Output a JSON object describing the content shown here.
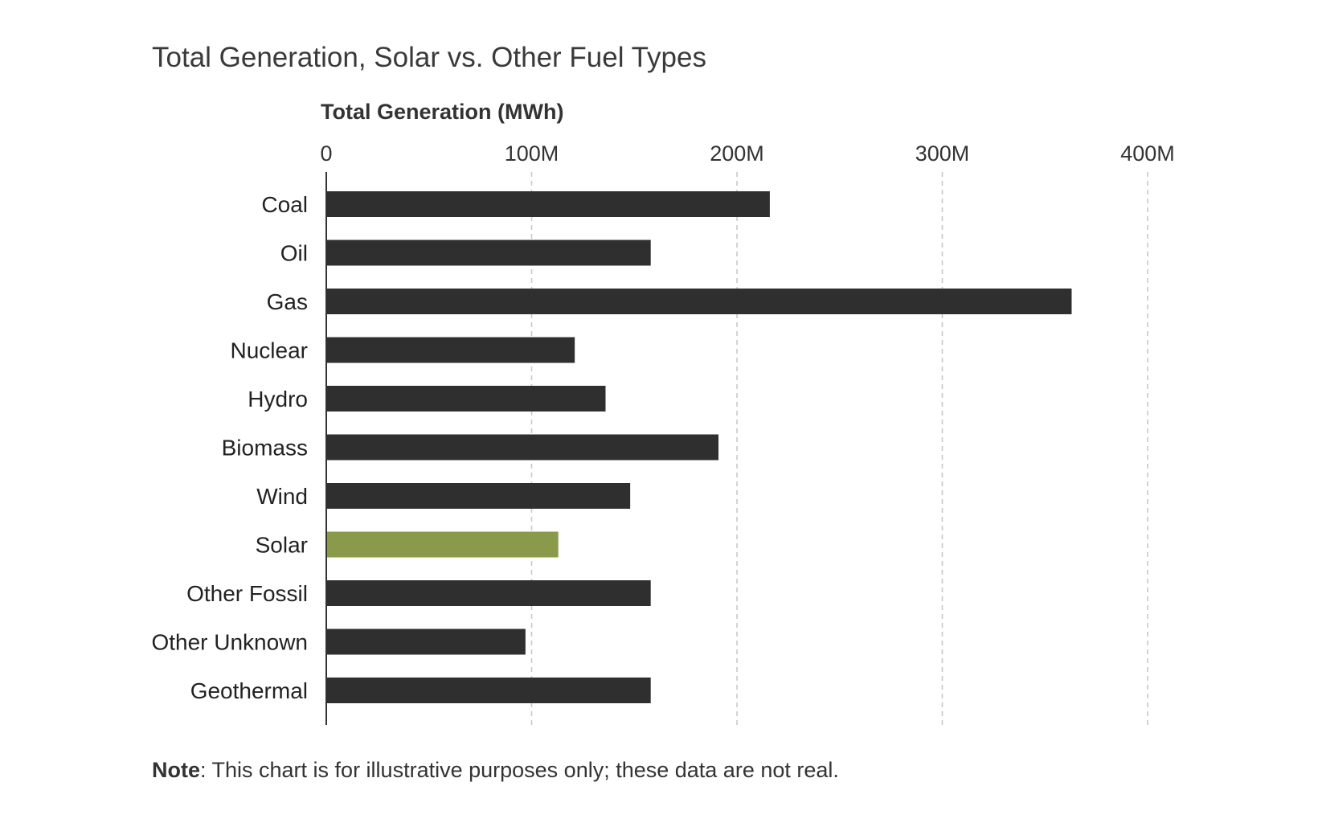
{
  "chart_data": {
    "type": "bar",
    "orientation": "horizontal",
    "title": "Total Generation, Solar vs. Other Fuel Types",
    "xlabel": "Total Generation (MWh)",
    "ylabel": "",
    "xlim": [
      0,
      400000000
    ],
    "x_ticks": [
      0,
      100000000,
      200000000,
      300000000,
      400000000
    ],
    "x_tick_labels": [
      "0",
      "100M",
      "200M",
      "300M",
      "400M"
    ],
    "categories": [
      "Coal",
      "Oil",
      "Gas",
      "Nuclear",
      "Hydro",
      "Biomass",
      "Wind",
      "Solar",
      "Other Fossil",
      "Other Unknown",
      "Geothermal"
    ],
    "values": [
      216000000,
      158000000,
      363000000,
      121000000,
      136000000,
      191000000,
      148000000,
      113000000,
      158000000,
      97000000,
      158000000
    ],
    "grid": "vertical dashed",
    "legend": "none",
    "highlight_category": "Solar",
    "colors": {
      "bar": "#2f2f2f",
      "highlight": "#8a9a4b",
      "grid": "#c8c8c8",
      "axis": "#333333"
    }
  },
  "note": {
    "label": "Note",
    "text": ": This chart is for illustrative purposes only; these data are not real."
  }
}
